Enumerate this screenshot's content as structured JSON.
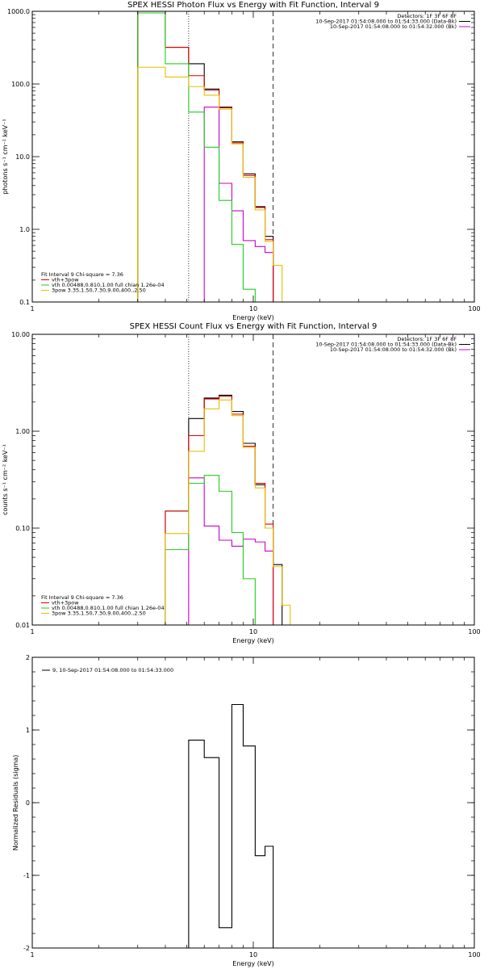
{
  "chart_data": [
    {
      "type": "histogram-step",
      "title": "SPEX HESSI Photon Flux vs Energy with Fit Function, Interval 9",
      "xlabel": "Energy (keV)",
      "ylabel": "photons s⁻¹ cm⁻² keV⁻¹",
      "xscale": "log",
      "yscale": "log",
      "xlim": [
        1,
        100
      ],
      "ylim": [
        0.1,
        1000
      ],
      "xticks": [
        {
          "value": 1,
          "label": "1"
        },
        {
          "value": 10,
          "label": "10"
        },
        {
          "value": 100,
          "label": "100"
        }
      ],
      "yticks": [
        {
          "value": 0.1,
          "label": "0.1"
        },
        {
          "value": 1,
          "label": "1.0"
        },
        {
          "value": 10,
          "label": "10.0"
        },
        {
          "value": 100,
          "label": "100.0"
        },
        {
          "value": 1000,
          "label": "1000.0"
        }
      ],
      "vlines": [
        {
          "x": 5.1,
          "style": "dotted"
        },
        {
          "x": 12.3,
          "style": "dashed"
        }
      ],
      "legend_right": [
        {
          "text": "Detectors: 1F 3F 6F 8F",
          "color": "",
          "swatch": false
        },
        {
          "text": "10-Sep-2017 01:54:08.000 to 01:54:33.000 (Data-Bk)",
          "color": "#000000",
          "swatch": true
        },
        {
          "text": "10-Sep-2017 01:54:08.000 to 01:54:32.000 (Bk)",
          "color": "#cc00cc",
          "swatch": true
        }
      ],
      "legend_left": [
        {
          "text": "Fit Interval 9   Chi-square = 7.36",
          "color": "",
          "swatch": false
        },
        {
          "text": "vth+3pow",
          "color": "#dd0000",
          "swatch": true
        },
        {
          "text": "vth 0.00488,0.810,1.00   full chian 1.26e-04",
          "color": "#22cc22",
          "swatch": true
        },
        {
          "text": "3pow 3.35,1.50,7.30,9.00,400.,2.50",
          "color": "#e6c000",
          "swatch": true
        }
      ],
      "series": [
        {
          "name": "Data-Bk",
          "color": "#000000",
          "edges": [
            3,
            4,
            5.1,
            6,
            7,
            8,
            9,
            10.2,
            11.3,
            12.3,
            13.5
          ],
          "values": [
            1000,
            320,
            190,
            85,
            48,
            16,
            5.8,
            2.05,
            0.8,
            0.1
          ]
        },
        {
          "name": "Bk",
          "color": "#cc00cc",
          "edges": [
            5.1,
            6,
            7,
            8,
            9,
            10.2,
            11.3,
            12.3
          ],
          "values": [
            0.1,
            48,
            4.3,
            1.8,
            0.7,
            0.58,
            0.48
          ]
        },
        {
          "name": "vth+3pow",
          "color": "#dd0000",
          "edges": [
            3,
            4,
            5.1,
            6,
            7,
            8,
            9,
            10.2,
            11.3,
            12.3
          ],
          "values": [
            1000,
            320,
            130,
            82,
            47,
            15.5,
            5.5,
            2.0,
            0.72
          ]
        },
        {
          "name": "vth",
          "color": "#22cc22",
          "edges": [
            3,
            4,
            5.1,
            6,
            7,
            8,
            9,
            10.2
          ],
          "values": [
            950,
            190,
            41,
            13.5,
            2.5,
            0.62,
            0.15
          ]
        },
        {
          "name": "3pow",
          "color": "#e6c000",
          "edges": [
            3,
            4,
            5.1,
            6,
            7,
            8,
            9,
            10.2,
            11.3,
            12.3,
            13.5,
            14.7
          ],
          "values": [
            170,
            125,
            92,
            70,
            45,
            15,
            5.2,
            1.85,
            0.68,
            0.32,
            0.1
          ]
        }
      ]
    },
    {
      "type": "histogram-step",
      "title": "SPEX HESSI Count Flux vs Energy with Fit Function, Interval 9",
      "xlabel": "Energy (keV)",
      "ylabel": "counts s⁻¹ cm⁻² keV⁻¹",
      "xscale": "log",
      "yscale": "log",
      "xlim": [
        1,
        100
      ],
      "ylim": [
        0.01,
        10
      ],
      "xticks": [
        {
          "value": 1,
          "label": "1"
        },
        {
          "value": 10,
          "label": "10"
        },
        {
          "value": 100,
          "label": "100"
        }
      ],
      "yticks": [
        {
          "value": 0.01,
          "label": "0.01"
        },
        {
          "value": 0.1,
          "label": "0.10"
        },
        {
          "value": 1,
          "label": "1.00"
        },
        {
          "value": 10,
          "label": "10.00"
        }
      ],
      "vlines": [
        {
          "x": 5.1,
          "style": "dotted"
        },
        {
          "x": 12.3,
          "style": "dashed"
        }
      ],
      "legend_right": [
        {
          "text": "Detectors: 1F 3F 6F 8F",
          "color": "",
          "swatch": false
        },
        {
          "text": "10-Sep-2017 01:54:08.000 to 01:54:33.000 (Data-Bk)",
          "color": "#000000",
          "swatch": true
        },
        {
          "text": "10-Sep-2017 01:54:08.000 to 01:54:32.000 (Bk)",
          "color": "#cc00cc",
          "swatch": true
        }
      ],
      "legend_left": [
        {
          "text": "Fit Interval 9   Chi-square = 7.36",
          "color": "",
          "swatch": false
        },
        {
          "text": "vth+3pow",
          "color": "#dd0000",
          "swatch": true
        },
        {
          "text": "vth 0.00488,0.810,1.00   full chian 1.26e-04",
          "color": "#22cc22",
          "swatch": true
        },
        {
          "text": "3pow 3.35,1.50,7.30,9.00,400.,2.50",
          "color": "#e6c000",
          "swatch": true
        }
      ],
      "series": [
        {
          "name": "Data-Bk",
          "color": "#000000",
          "edges": [
            3,
            4,
            5.1,
            6,
            7,
            8,
            9,
            10.2,
            11.3,
            12.3,
            13.5
          ],
          "values": [
            0.01,
            0.15,
            1.35,
            2.2,
            2.35,
            1.6,
            0.75,
            0.28,
            0.1,
            0.042
          ]
        },
        {
          "name": "Bk",
          "color": "#cc00cc",
          "edges": [
            5.1,
            6,
            7,
            8,
            9,
            10.2,
            11.3,
            12.3
          ],
          "values": [
            0.33,
            0.105,
            0.075,
            0.065,
            0.077,
            0.072,
            0.058
          ]
        },
        {
          "name": "vth+3pow",
          "color": "#dd0000",
          "edges": [
            3,
            4,
            5.1,
            6,
            7,
            8,
            9,
            10.2,
            11.3,
            12.3
          ],
          "values": [
            0.01,
            0.15,
            0.9,
            2.15,
            2.3,
            1.5,
            0.7,
            0.29,
            0.11
          ]
        },
        {
          "name": "vth",
          "color": "#22cc22",
          "edges": [
            4,
            5.1,
            6,
            7,
            8,
            9,
            10.2
          ],
          "values": [
            0.06,
            0.29,
            0.35,
            0.24,
            0.09,
            0.03,
            0.01
          ]
        },
        {
          "name": "3pow",
          "color": "#e6c000",
          "edges": [
            4,
            5.1,
            6,
            7,
            8,
            9,
            10.2,
            11.3,
            12.3,
            13.5,
            14.7
          ],
          "values": [
            0.088,
            0.62,
            1.7,
            2.1,
            1.45,
            0.68,
            0.26,
            0.1,
            0.04,
            0.016
          ]
        }
      ]
    },
    {
      "type": "histogram-step",
      "title": "",
      "xlabel": "Energy (keV)",
      "ylabel": "Normalized Residuals (sigma)",
      "xscale": "log",
      "yscale": "linear",
      "xlim": [
        1,
        100
      ],
      "ylim": [
        -2,
        2
      ],
      "xticks": [
        {
          "value": 1,
          "label": "1"
        },
        {
          "value": 10,
          "label": "10"
        },
        {
          "value": 100,
          "label": "100"
        }
      ],
      "yticks": [
        {
          "value": -2,
          "label": "-2"
        },
        {
          "value": -1,
          "label": "-1"
        },
        {
          "value": 0,
          "label": "0"
        },
        {
          "value": 1,
          "label": "1"
        },
        {
          "value": 2,
          "label": "2"
        }
      ],
      "vlines": [],
      "legend_right": [],
      "legend_left_top": [
        {
          "text": "9, 10-Sep-2017 01:54:08.000 to 01:54:33.000",
          "color": "#000000",
          "swatch": true
        }
      ],
      "legend_left": [],
      "series": [
        {
          "name": "Residuals",
          "color": "#000000",
          "edges": [
            5.1,
            6,
            7,
            8,
            9,
            10.2,
            11.3,
            12.3
          ],
          "values": [
            0.86,
            0.62,
            -1.72,
            1.35,
            0.78,
            -0.73,
            -0.6
          ]
        }
      ]
    }
  ]
}
